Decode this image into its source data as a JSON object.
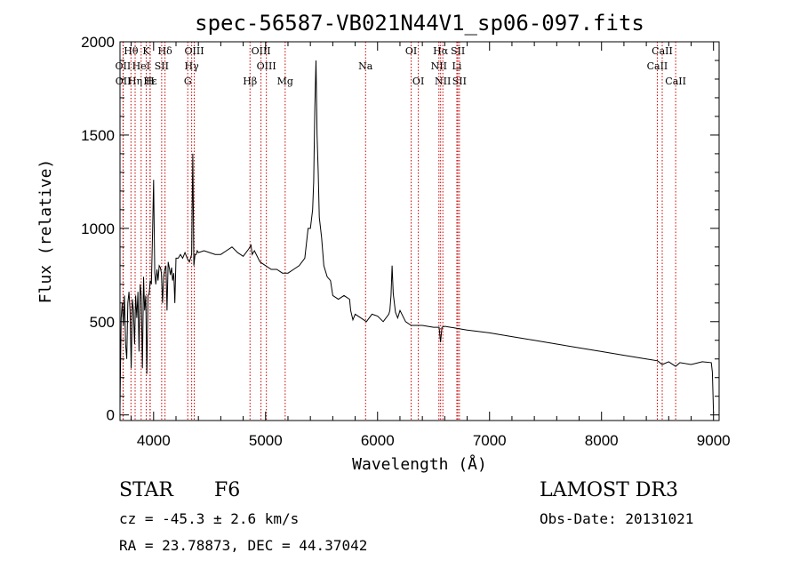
{
  "chart_data": {
    "type": "line",
    "title": "spec-56587-VB021N44V1_sp06-097.fits",
    "xlabel": "Wavelength (Å)",
    "ylabel": "Flux (relative)",
    "xlim": [
      3700,
      9050
    ],
    "ylim": [
      -30,
      2000
    ],
    "x_ticks": [
      4000,
      5000,
      6000,
      7000,
      8000,
      9000
    ],
    "y_ticks": [
      0,
      500,
      1000,
      1500,
      2000
    ],
    "x": [
      3700,
      3710,
      3720,
      3730,
      3740,
      3750,
      3760,
      3770,
      3780,
      3790,
      3800,
      3810,
      3820,
      3830,
      3840,
      3850,
      3860,
      3870,
      3880,
      3890,
      3900,
      3910,
      3920,
      3930,
      3940,
      3950,
      3960,
      3970,
      3980,
      3990,
      4000,
      4010,
      4020,
      4030,
      4040,
      4050,
      4060,
      4070,
      4080,
      4090,
      4100,
      4110,
      4120,
      4130,
      4140,
      4150,
      4160,
      4170,
      4180,
      4190,
      4200,
      4220,
      4240,
      4260,
      4280,
      4300,
      4320,
      4340,
      4350,
      4360,
      4370,
      4380,
      4390,
      4400,
      4450,
      4500,
      4550,
      4600,
      4650,
      4700,
      4750,
      4800,
      4850,
      4860,
      4870,
      4880,
      4900,
      4950,
      5000,
      5050,
      5100,
      5150,
      5200,
      5250,
      5300,
      5350,
      5380,
      5400,
      5420,
      5430,
      5440,
      5450,
      5460,
      5470,
      5480,
      5500,
      5520,
      5550,
      5580,
      5600,
      5650,
      5700,
      5750,
      5760,
      5780,
      5800,
      5850,
      5900,
      5950,
      6000,
      6050,
      6100,
      6110,
      6120,
      6130,
      6140,
      6160,
      6180,
      6200,
      6250,
      6300,
      6400,
      6500,
      6550,
      6562,
      6575,
      6600,
      6700,
      6800,
      7000,
      7200,
      7400,
      7600,
      7800,
      8000,
      8200,
      8400,
      8500,
      8542,
      8600,
      8662,
      8700,
      8800,
      8900,
      8980,
      8990,
      9000
    ],
    "series": [
      {
        "name": "flux",
        "values": [
          40,
          520,
          600,
          480,
          640,
          380,
          300,
          600,
          660,
          560,
          250,
          620,
          560,
          380,
          640,
          520,
          660,
          340,
          700,
          640,
          250,
          740,
          560,
          640,
          220,
          640,
          650,
          720,
          700,
          950,
          1260,
          760,
          700,
          780,
          720,
          800,
          790,
          760,
          600,
          740,
          780,
          800,
          560,
          820,
          790,
          750,
          790,
          720,
          760,
          600,
          840,
          840,
          860,
          840,
          870,
          840,
          820,
          860,
          1400,
          800,
          860,
          860,
          880,
          870,
          880,
          870,
          860,
          860,
          880,
          900,
          870,
          850,
          890,
          900,
          910,
          860,
          880,
          820,
          800,
          780,
          780,
          760,
          760,
          780,
          800,
          840,
          1000,
          1000,
          1100,
          1250,
          1650,
          1900,
          1500,
          1300,
          1060,
          950,
          800,
          740,
          720,
          640,
          620,
          640,
          620,
          560,
          510,
          540,
          520,
          500,
          540,
          530,
          500,
          540,
          560,
          640,
          800,
          650,
          550,
          520,
          560,
          500,
          480,
          480,
          470,
          470,
          390,
          470,
          475,
          465,
          455,
          440,
          420,
          400,
          380,
          360,
          340,
          320,
          300,
          290,
          270,
          285,
          260,
          280,
          270,
          285,
          280,
          230,
          10
        ]
      }
    ]
  },
  "lines": [
    {
      "label": "Hθ",
      "wl": 3798,
      "row": 0
    },
    {
      "label": "K",
      "wl": 3934,
      "row": 0
    },
    {
      "label": "Hδ",
      "wl": 4102,
      "row": 0
    },
    {
      "label": "OIII",
      "wl": 4363,
      "row": 0
    },
    {
      "label": "OIII",
      "wl": 4959,
      "row": 0
    },
    {
      "label": "Na",
      "wl": 5893,
      "row": 1
    },
    {
      "label": "OI",
      "wl": 6300,
      "row": 0
    },
    {
      "label": "Hα",
      "wl": 6563,
      "row": 0
    },
    {
      "label": "SII",
      "wl": 6717,
      "row": 0
    },
    {
      "label": "CaII",
      "wl": 8542,
      "row": 0
    },
    {
      "label": "OII",
      "wl": 3727,
      "row": 1
    },
    {
      "label": "HeI",
      "wl": 3889,
      "row": 1
    },
    {
      "label": "SII",
      "wl": 4072,
      "row": 1
    },
    {
      "label": "Hγ",
      "wl": 4340,
      "row": 1
    },
    {
      "label": "OIII",
      "wl": 5007,
      "row": 1
    },
    {
      "label": "NII",
      "wl": 6548,
      "row": 1
    },
    {
      "label": "Li",
      "wl": 6708,
      "row": 1
    },
    {
      "label": "CaII",
      "wl": 8498,
      "row": 1
    },
    {
      "label": "OII",
      "wl": 3729,
      "row": 2
    },
    {
      "label": "Hε",
      "wl": 3970,
      "row": 2
    },
    {
      "label": "Hη",
      "wl": 3835,
      "row": 2
    },
    {
      "label": "H",
      "wl": 3968,
      "row": 2
    },
    {
      "label": "G",
      "wl": 4305,
      "row": 2
    },
    {
      "label": "Hβ",
      "wl": 4861,
      "row": 2
    },
    {
      "label": "Mg",
      "wl": 5175,
      "row": 2
    },
    {
      "label": "OI",
      "wl": 6364,
      "row": 2
    },
    {
      "label": "NII",
      "wl": 6583,
      "row": 2
    },
    {
      "label": "SII",
      "wl": 6731,
      "row": 2
    },
    {
      "label": "CaII",
      "wl": 8662,
      "row": 2
    }
  ],
  "info": {
    "type": "STAR",
    "subclass": "F6",
    "survey": "LAMOST DR3",
    "cz": "cz = -45.3 ± 2.6 km/s",
    "obs_date": "Obs-Date: 20131021",
    "coords": "RA =  23.78873, DEC =  44.37042"
  },
  "colors": {
    "line_marker": "#cc0000",
    "spectrum": "#000000"
  }
}
